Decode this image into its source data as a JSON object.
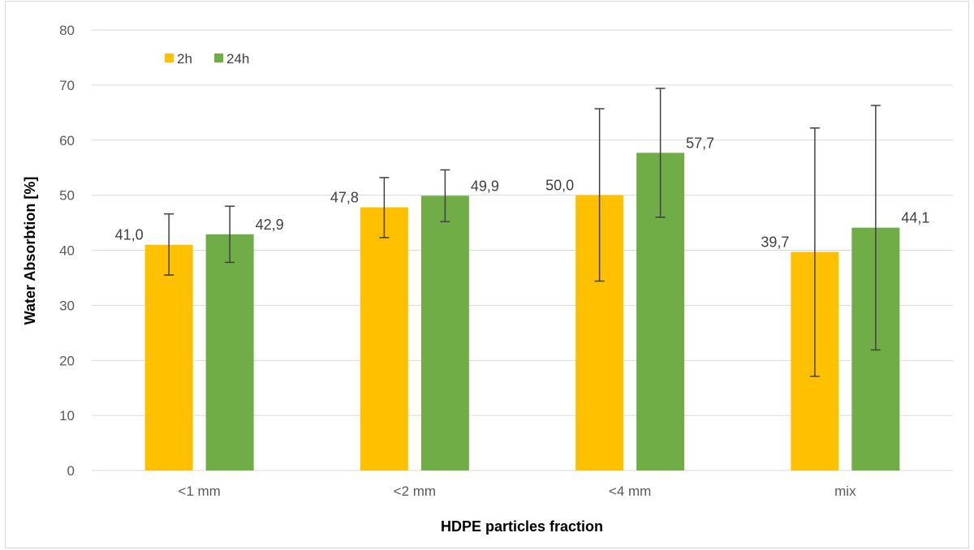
{
  "chart_data": {
    "type": "bar",
    "title": "",
    "xlabel": "HDPE particles fraction",
    "ylabel": "Water Absorbtion [%]",
    "categories": [
      "<1 mm",
      "<2 mm",
      "<4 mm",
      "mix"
    ],
    "series": [
      {
        "name": "2h",
        "color": "#FFC000",
        "values": [
          41.0,
          47.8,
          50.0,
          39.7
        ],
        "value_labels": [
          "41,0",
          "47,8",
          "50,0",
          "39,7"
        ],
        "error_low": [
          35.5,
          42.3,
          34.4,
          17.1
        ],
        "error_high": [
          46.6,
          53.2,
          65.7,
          62.2
        ]
      },
      {
        "name": "24h",
        "color": "#70AD47",
        "values": [
          42.9,
          49.9,
          57.7,
          44.1
        ],
        "value_labels": [
          "42,9",
          "49,9",
          "57,7",
          "44,1"
        ],
        "error_low": [
          37.8,
          45.2,
          46.0,
          21.9
        ],
        "error_high": [
          48.0,
          54.6,
          69.4,
          66.3
        ]
      }
    ],
    "ylim": [
      0,
      80
    ],
    "yticks": [
      "0",
      "10",
      "20",
      "30",
      "40",
      "50",
      "60",
      "70",
      "80"
    ],
    "grid": true,
    "legend_position": "top-left"
  }
}
